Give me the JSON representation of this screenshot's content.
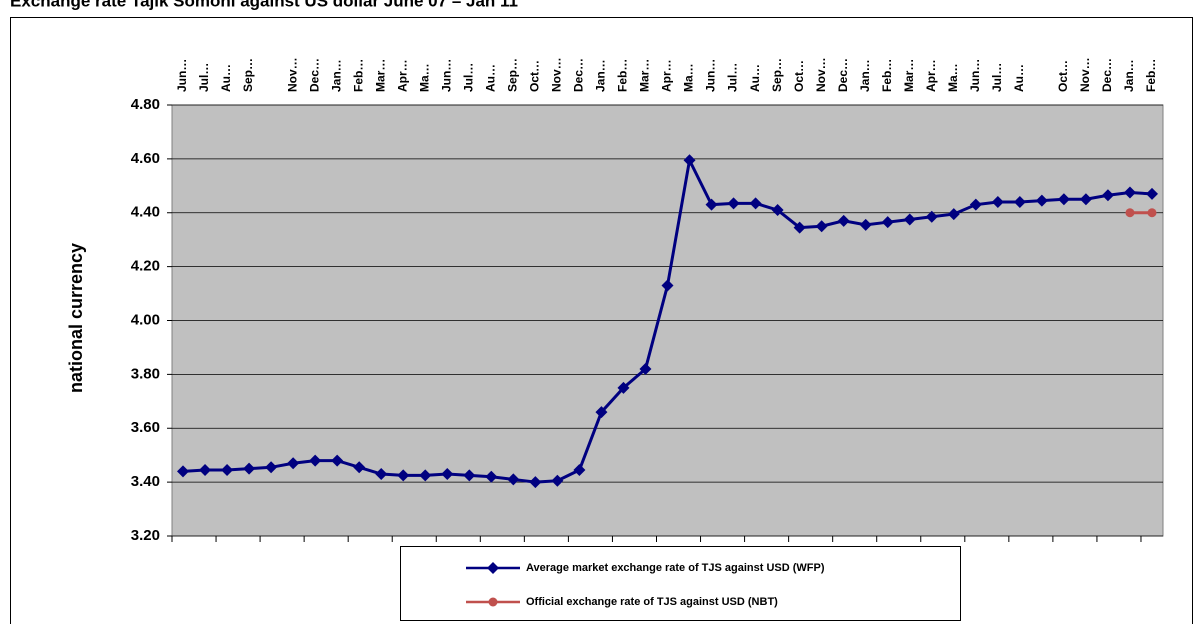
{
  "chart_data": {
    "type": "line",
    "title": "Exchange rate Tajik Somoni against US dollar June 07 – Jan 11",
    "y_label": "national currency",
    "categories": [
      "Jun…",
      "Jul…",
      "Au…",
      "Sep…",
      null,
      "Nov…",
      "Dec…",
      "Jan…",
      "Feb…",
      "Mar…",
      "Apr…",
      "Ma…",
      "Jun…",
      "Jul…",
      "Au…",
      "Sep…",
      "Oct…",
      "Nov…",
      "Dec…",
      "Jan…",
      "Feb…",
      "Mar…",
      "Apr…",
      "Ma…",
      "Jun…",
      "Jul…",
      "Au…",
      "Sep…",
      "Oct…",
      "Nov…",
      "Dec…",
      "Jan…",
      "Feb…",
      "Mar…",
      "Apr…",
      "Ma…",
      "Jun…",
      "Jul…",
      "Au…",
      null,
      "Oct…",
      "Nov…",
      "Dec…",
      "Jan…",
      "Feb…"
    ],
    "series": [
      {
        "name": "Average market exchange rate of TJS against USD (WFP)",
        "color": "#000080",
        "marker": "diamond",
        "values": [
          3.44,
          3.445,
          3.445,
          3.45,
          3.455,
          3.47,
          3.48,
          3.48,
          3.455,
          3.43,
          3.425,
          3.425,
          3.43,
          3.425,
          3.42,
          3.41,
          3.4,
          3.405,
          3.445,
          3.66,
          3.75,
          3.82,
          4.13,
          4.595,
          4.43,
          4.435,
          4.435,
          4.41,
          4.345,
          4.35,
          4.37,
          4.355,
          4.365,
          4.375,
          4.385,
          4.395,
          4.43,
          4.44,
          4.44,
          4.445,
          4.45,
          4.45,
          4.465,
          4.475,
          4.47
        ]
      },
      {
        "name": "Official exchange rate of TJS against USD (NBT)",
        "color": "#c0504d",
        "marker": "circle",
        "values": [
          null,
          null,
          null,
          null,
          null,
          null,
          null,
          null,
          null,
          null,
          null,
          null,
          null,
          null,
          null,
          null,
          null,
          null,
          null,
          null,
          null,
          null,
          null,
          null,
          null,
          null,
          null,
          null,
          null,
          null,
          null,
          null,
          null,
          null,
          null,
          null,
          null,
          null,
          null,
          null,
          null,
          null,
          null,
          4.4,
          4.4
        ]
      }
    ],
    "ylim": [
      3.2,
      4.8
    ],
    "yticks": [
      {
        "value": 3.2,
        "label": "3.20"
      },
      {
        "value": 3.4,
        "label": "3.40"
      },
      {
        "value": 3.6,
        "label": "3.60"
      },
      {
        "value": 3.8,
        "label": "3.80"
      },
      {
        "value": 4.0,
        "label": "4.00"
      },
      {
        "value": 4.2,
        "label": "4.20"
      },
      {
        "value": 4.4,
        "label": "4.40"
      },
      {
        "value": 4.6,
        "label": "4.60"
      },
      {
        "value": 4.8,
        "label": "4.80"
      }
    ],
    "grid": true,
    "legend": "bottom"
  }
}
